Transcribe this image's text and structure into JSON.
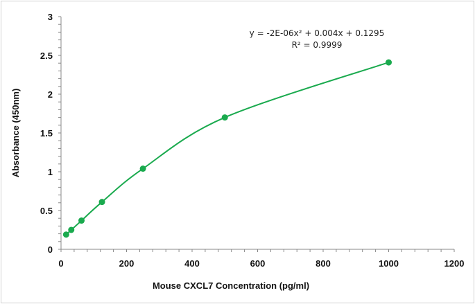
{
  "chart_data": {
    "type": "scatter",
    "title": "",
    "xlabel": "Mouse CXCL7 Concentration (pg/ml)",
    "ylabel": "Absorbance (450nm)",
    "xlim": [
      0,
      1200
    ],
    "ylim": [
      0,
      3
    ],
    "xticks": [
      "0",
      "200",
      "400",
      "600",
      "800",
      "1000",
      "1200"
    ],
    "yticks": [
      "0",
      "0.5",
      "1",
      "1.5",
      "2",
      "2.5",
      "3"
    ],
    "grid": false,
    "series": [
      {
        "x": [
          15.6,
          31.25,
          62.5,
          125,
          250,
          500,
          1000
        ],
        "y": [
          0.19,
          0.25,
          0.37,
          0.61,
          1.04,
          1.7,
          2.41
        ],
        "color": "#1aaa4e",
        "trendline": "polynomial-2"
      }
    ],
    "annotations": {
      "equation": "y = -2E-06x² + 0.004x + 0.1295",
      "r_squared": "R² = 0.9999"
    }
  }
}
